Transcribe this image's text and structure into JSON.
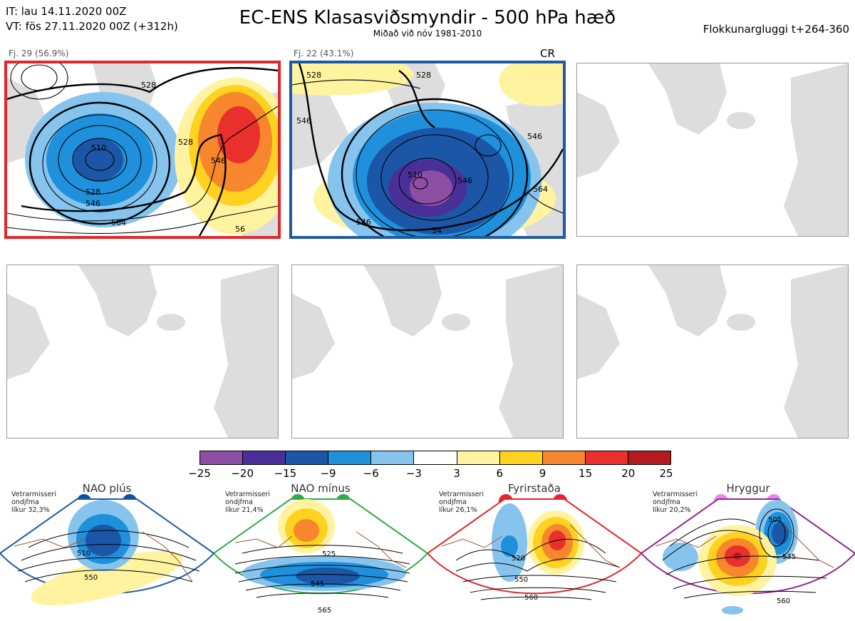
{
  "header": {
    "init_time": "IT: lau 14.11.2020 00Z",
    "valid_time": "VT: fös 27.11.2020 00Z  (+312h)",
    "title": "EC-ENS Klasasviðsmyndir - 500 hPa hæð",
    "subtitle": "Miðað við nóv 1981-2010",
    "window": "Flokkunargluggi t+264-360"
  },
  "clusters": [
    {
      "label": "Fj. 29 (56.9%)",
      "border_color": "#e3262b",
      "contours": [
        "528",
        "528",
        "510",
        "528",
        "546",
        "564",
        "546",
        "56"
      ]
    },
    {
      "label": "Fj. 22 (43.1%)",
      "border_color": "#1d5aa6",
      "contours": [
        "528",
        "546",
        "528",
        "546",
        "510",
        "546",
        "564",
        "546",
        "54"
      ],
      "tag": "CR"
    }
  ],
  "colorbar": {
    "ticks": [
      "−25",
      "−20",
      "−15",
      "−9",
      "−6",
      "−3",
      "3",
      "6",
      "9",
      "15",
      "20",
      "25"
    ],
    "colors": [
      "#8c4fa3",
      "#4b2f98",
      "#1b56a7",
      "#1e90dc",
      "#86c4ee",
      "#ffffff",
      "#fff3a0",
      "#ffd21f",
      "#f7862d",
      "#e9302c",
      "#b51b1e"
    ]
  },
  "regimes": [
    {
      "name": "NAO plús",
      "note": [
        "Vetrarmisseri",
        "ondjfma",
        "líkur 32,3%"
      ],
      "color": "#1d5aa6",
      "dot_color": "#0f4f9e",
      "contours": [
        "510",
        "550"
      ]
    },
    {
      "name": "NAO mínus",
      "note": [
        "Vetrarmisseri",
        "ondjfma",
        "líkur 21,4%"
      ],
      "color": "#2eaa47",
      "dot_color": "#2eaa47",
      "contours": [
        "525",
        "545",
        "565"
      ]
    },
    {
      "name": "Fyrirstaða",
      "note": [
        "Vetrarmisseri",
        "ondjfma",
        "líkur 26,1%"
      ],
      "color": "#e3262b",
      "dot_color": "#e3262b",
      "contours": [
        "520",
        "550",
        "560"
      ]
    },
    {
      "name": "Hryggur",
      "note": [
        "Vetrarmisseri",
        "ondjfma",
        "líkur 20,2%"
      ],
      "color": "#8e2a8e",
      "dot_color": "#ee82ee",
      "contours": [
        "505",
        "535",
        "560"
      ]
    }
  ]
}
